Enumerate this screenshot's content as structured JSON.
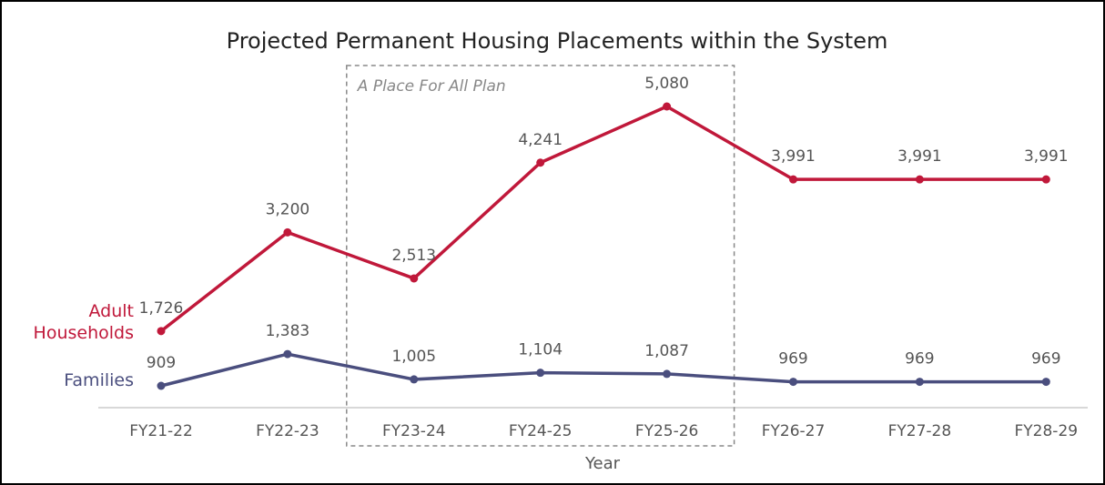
{
  "chart_data": {
    "type": "line",
    "title": "Projected Permanent Housing Placements within the System",
    "x_label": "Year",
    "categories": [
      "FY21-22",
      "FY22-23",
      "FY23-24",
      "FY24-25",
      "FY25-26",
      "FY26-27",
      "FY27-28",
      "FY28-29"
    ],
    "series": [
      {
        "name": "Adult Households",
        "color": "#c0183a",
        "values": [
          1726,
          3200,
          2513,
          4241,
          5080,
          3991,
          3991,
          3991
        ],
        "value_labels": [
          "1,726",
          "3,200",
          "2,513",
          "4,241",
          "5,080",
          "3,991",
          "3,991",
          "3,991"
        ]
      },
      {
        "name": "Families",
        "color": "#4a4e7e",
        "values": [
          909,
          1383,
          1005,
          1104,
          1087,
          969,
          969,
          969
        ],
        "value_labels": [
          "909",
          "1,383",
          "1,005",
          "1,104",
          "1,087",
          "969",
          "969",
          "969"
        ]
      }
    ],
    "annotation": {
      "text": "A Place For All Plan",
      "categories": [
        "FY23-24",
        "FY25-26"
      ]
    }
  }
}
